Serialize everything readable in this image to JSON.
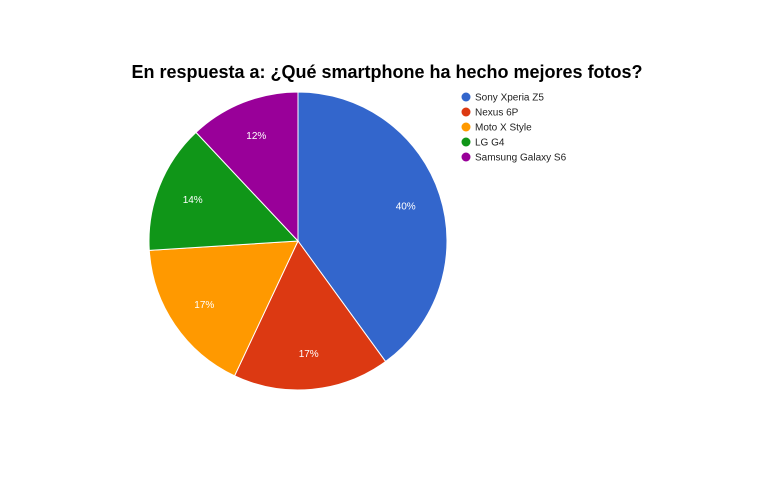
{
  "chart_data": {
    "type": "pie",
    "title": "En respuesta a: ¿Qué smartphone ha hecho mejores fotos?",
    "categories": [
      "Sony Xperia Z5",
      "Nexus 6P",
      "Moto X Style",
      "LG G4",
      "Samsung Galaxy S6"
    ],
    "values": [
      40,
      17,
      17,
      14,
      12
    ],
    "labels": [
      "40%",
      "17%",
      "17%",
      "14%",
      "12%"
    ],
    "colors": [
      "#3366cc",
      "#dc3912",
      "#ff9900",
      "#109618",
      "#990099"
    ],
    "legend_position": "right"
  }
}
